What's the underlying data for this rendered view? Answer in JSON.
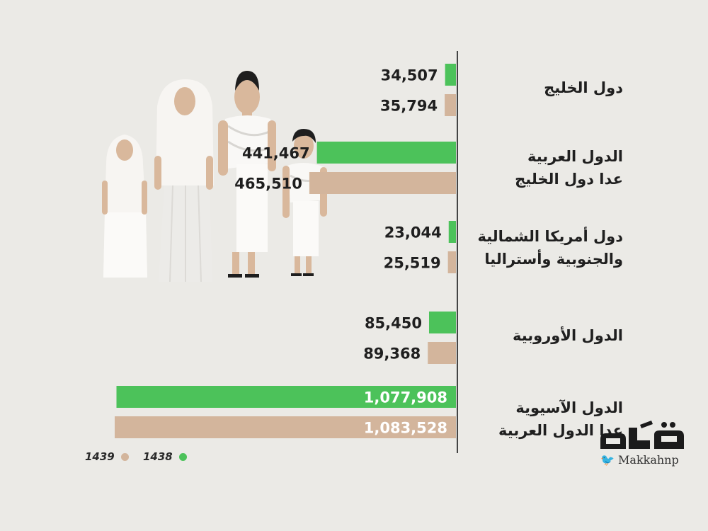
{
  "chart_data": {
    "type": "bar",
    "orientation": "horizontal",
    "categories": [
      "دول الخليج",
      "الدول العربية عدا دول الخليج",
      "دول أمريكا الشمالية والجنوبية وأستراليا",
      "الدول الأوروبية",
      "الدول الآسيوية عدا الدول العربية"
    ],
    "category_lines": [
      [
        "دول الخليج"
      ],
      [
        "الدول العربية",
        "عدا دول الخليج"
      ],
      [
        "دول أمريكا الشمالية",
        "والجنوبية وأستراليا"
      ],
      [
        "الدول الأوروبية"
      ],
      [
        "الدول الآسيوية",
        "عدا الدول العربية"
      ]
    ],
    "series": [
      {
        "name": "1438",
        "color": "#4cc25a",
        "values": [
          34507,
          441467,
          23044,
          85450,
          1077908
        ]
      },
      {
        "name": "1439",
        "color": "#d3b59c",
        "values": [
          35794,
          465510,
          25519,
          89368,
          1083528
        ]
      }
    ],
    "value_labels": [
      [
        "34,507",
        "441,467",
        "23,044",
        "85,450",
        "1,077,908"
      ],
      [
        "35,794",
        "465,510",
        "25,519",
        "89,368",
        "1,083,528"
      ]
    ],
    "legend": "bottom-left",
    "grid": false
  },
  "branding": {
    "logo_text": "مكة",
    "handle": "Makkahnp",
    "twitter_icon": "twitter-bird-icon"
  }
}
